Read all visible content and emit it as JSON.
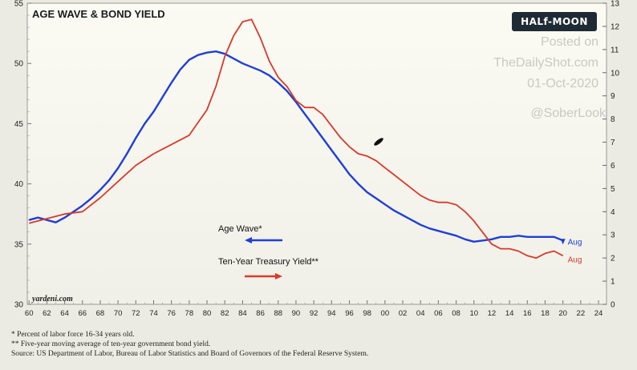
{
  "badge": "HALf-MOON",
  "watermark": {
    "line1": "Posted on",
    "line2": "TheDailyShot.com",
    "line3": "01-Oct-2020",
    "line4": "@SoberLook"
  },
  "source_logo": "yardeni.com",
  "footnotes": [
    "*   Percent of labor force 16-34 years old.",
    "**  Five-year moving average of ten-year government bond yield.",
    "     Source: US Department of Labor, Bureau of Labor Statistics and Board of Governors of the Federal Reserve System."
  ],
  "colors": {
    "age_wave": "#1f3fd6",
    "yield": "#d83a2a",
    "bg": "#f6f6ef",
    "grid": "#d4d4cc"
  },
  "chart_data": {
    "type": "line",
    "title": "AGE WAVE & BOND YIELD",
    "x_ticks": [
      "60",
      "62",
      "64",
      "66",
      "68",
      "70",
      "72",
      "74",
      "76",
      "78",
      "80",
      "82",
      "84",
      "86",
      "88",
      "90",
      "92",
      "94",
      "96",
      "98",
      "00",
      "02",
      "04",
      "06",
      "08",
      "10",
      "12",
      "14",
      "16",
      "18",
      "20",
      "22",
      "24"
    ],
    "xlim": [
      1960,
      2025
    ],
    "left_axis": {
      "ticks": [
        "30",
        "35",
        "40",
        "45",
        "50",
        "55"
      ],
      "range": [
        30,
        55
      ]
    },
    "right_axis": {
      "ticks": [
        "0",
        "1",
        "2",
        "3",
        "4",
        "5",
        "6",
        "7",
        "8",
        "9",
        "10",
        "11",
        "12",
        "13"
      ],
      "range": [
        0,
        13
      ]
    },
    "grid": false,
    "legend_position": "lower-left",
    "series": [
      {
        "name": "Age Wave*",
        "axis": "left",
        "end_label": "Aug",
        "points": [
          [
            1960,
            37.0
          ],
          [
            1961,
            37.2
          ],
          [
            1962,
            37.0
          ],
          [
            1963,
            36.8
          ],
          [
            1964,
            37.2
          ],
          [
            1965,
            37.7
          ],
          [
            1966,
            38.2
          ],
          [
            1967,
            38.8
          ],
          [
            1968,
            39.5
          ],
          [
            1969,
            40.3
          ],
          [
            1970,
            41.3
          ],
          [
            1971,
            42.5
          ],
          [
            1972,
            43.8
          ],
          [
            1973,
            45.0
          ],
          [
            1974,
            46.0
          ],
          [
            1975,
            47.2
          ],
          [
            1976,
            48.4
          ],
          [
            1977,
            49.5
          ],
          [
            1978,
            50.3
          ],
          [
            1979,
            50.7
          ],
          [
            1980,
            50.9
          ],
          [
            1981,
            51.0
          ],
          [
            1982,
            50.8
          ],
          [
            1983,
            50.4
          ],
          [
            1984,
            50.0
          ],
          [
            1985,
            49.7
          ],
          [
            1986,
            49.4
          ],
          [
            1987,
            49.0
          ],
          [
            1988,
            48.4
          ],
          [
            1989,
            47.7
          ],
          [
            1990,
            46.8
          ],
          [
            1991,
            45.8
          ],
          [
            1992,
            44.8
          ],
          [
            1993,
            43.8
          ],
          [
            1994,
            42.8
          ],
          [
            1995,
            41.8
          ],
          [
            1996,
            40.8
          ],
          [
            1997,
            40.0
          ],
          [
            1998,
            39.3
          ],
          [
            1999,
            38.8
          ],
          [
            2000,
            38.3
          ],
          [
            2001,
            37.8
          ],
          [
            2002,
            37.4
          ],
          [
            2003,
            37.0
          ],
          [
            2004,
            36.6
          ],
          [
            2005,
            36.3
          ],
          [
            2006,
            36.1
          ],
          [
            2007,
            35.9
          ],
          [
            2008,
            35.7
          ],
          [
            2009,
            35.4
          ],
          [
            2010,
            35.2
          ],
          [
            2011,
            35.3
          ],
          [
            2012,
            35.4
          ],
          [
            2013,
            35.6
          ],
          [
            2014,
            35.6
          ],
          [
            2015,
            35.7
          ],
          [
            2016,
            35.6
          ],
          [
            2017,
            35.6
          ],
          [
            2018,
            35.6
          ],
          [
            2019,
            35.6
          ],
          [
            2020,
            35.3
          ]
        ]
      },
      {
        "name": "Ten-Year Treasury Yield**",
        "axis": "right",
        "end_label": "Aug",
        "points": [
          [
            1960,
            3.5
          ],
          [
            1962,
            3.7
          ],
          [
            1964,
            3.9
          ],
          [
            1966,
            4.0
          ],
          [
            1968,
            4.6
          ],
          [
            1970,
            5.3
          ],
          [
            1972,
            6.0
          ],
          [
            1974,
            6.5
          ],
          [
            1976,
            6.9
          ],
          [
            1978,
            7.3
          ],
          [
            1980,
            8.4
          ],
          [
            1981,
            9.4
          ],
          [
            1982,
            10.7
          ],
          [
            1983,
            11.6
          ],
          [
            1984,
            12.2
          ],
          [
            1985,
            12.3
          ],
          [
            1986,
            11.5
          ],
          [
            1987,
            10.5
          ],
          [
            1988,
            9.8
          ],
          [
            1989,
            9.4
          ],
          [
            1990,
            8.8
          ],
          [
            1991,
            8.5
          ],
          [
            1992,
            8.5
          ],
          [
            1993,
            8.2
          ],
          [
            1994,
            7.7
          ],
          [
            1995,
            7.2
          ],
          [
            1996,
            6.8
          ],
          [
            1997,
            6.5
          ],
          [
            1998,
            6.4
          ],
          [
            1999,
            6.2
          ],
          [
            2000,
            5.9
          ],
          [
            2001,
            5.6
          ],
          [
            2002,
            5.3
          ],
          [
            2003,
            5.0
          ],
          [
            2004,
            4.7
          ],
          [
            2005,
            4.5
          ],
          [
            2006,
            4.4
          ],
          [
            2007,
            4.4
          ],
          [
            2008,
            4.3
          ],
          [
            2009,
            4.0
          ],
          [
            2010,
            3.6
          ],
          [
            2011,
            3.1
          ],
          [
            2012,
            2.6
          ],
          [
            2013,
            2.4
          ],
          [
            2014,
            2.4
          ],
          [
            2015,
            2.3
          ],
          [
            2016,
            2.1
          ],
          [
            2017,
            2.0
          ],
          [
            2018,
            2.2
          ],
          [
            2019,
            2.3
          ],
          [
            2020,
            2.1
          ]
        ]
      }
    ]
  }
}
